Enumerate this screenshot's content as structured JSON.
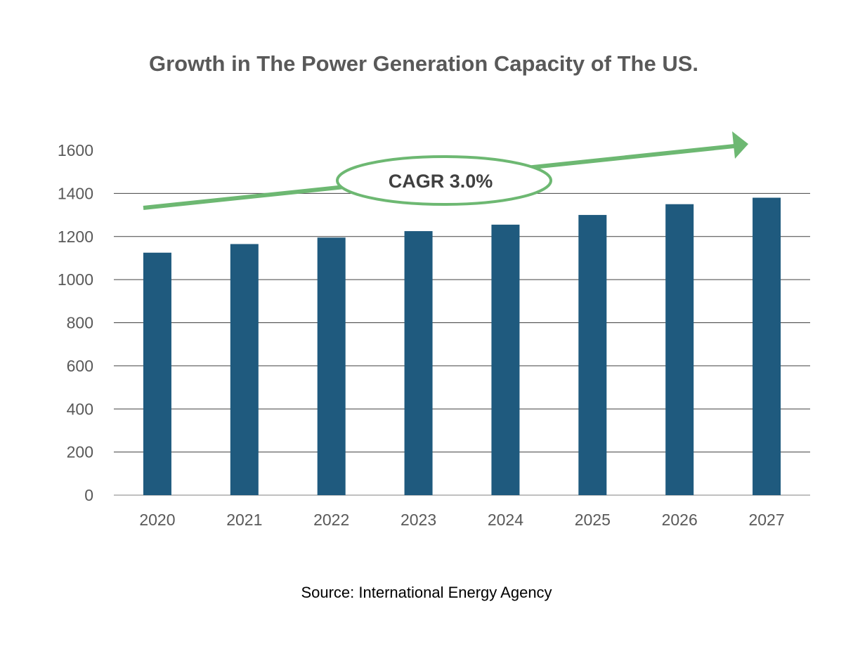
{
  "chart_data": {
    "type": "bar",
    "title": "Growth in The Power Generation Capacity of The US.",
    "categories": [
      "2020",
      "2021",
      "2022",
      "2023",
      "2024",
      "2025",
      "2026",
      "2027"
    ],
    "values": [
      1125,
      1165,
      1195,
      1225,
      1255,
      1300,
      1350,
      1380
    ],
    "xlabel": "",
    "ylabel": "",
    "ylim": [
      0,
      1600
    ],
    "yticks": [
      "0",
      "200",
      "400",
      "600",
      "800",
      "1000",
      "1200",
      "1400",
      "1600"
    ],
    "grid": true,
    "bar_color": "#1f5a7e",
    "annotation": {
      "text": "CAGR 3.0%",
      "color": "#6db872"
    },
    "source": "Source: International Energy Agency"
  }
}
